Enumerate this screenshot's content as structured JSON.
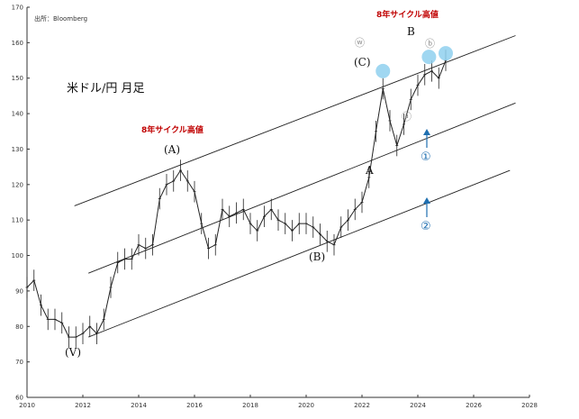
{
  "chart_data": {
    "type": "line",
    "title": "米ドル/円 月足",
    "source": "出所：Bloomberg",
    "ylim": [
      60,
      170
    ],
    "yticks": [
      60,
      70,
      80,
      90,
      100,
      110,
      120,
      130,
      140,
      150,
      160,
      170
    ],
    "xlim": [
      2010,
      2028
    ],
    "xticks": [
      "2010",
      "2012",
      "2014",
      "2016",
      "2018",
      "2020",
      "2022",
      "2024",
      "2026",
      "2028"
    ],
    "grid": false,
    "series": [
      {
        "x": [
          2010.0,
          2010.25,
          2010.5,
          2010.75,
          2011.0,
          2011.25,
          2011.5,
          2011.75,
          2012.0,
          2012.25,
          2012.5,
          2012.75,
          2013.0,
          2013.25,
          2013.5,
          2013.75,
          2014.0,
          2014.25,
          2014.5,
          2014.75,
          2015.0,
          2015.25,
          2015.5,
          2015.75,
          2016.0,
          2016.25,
          2016.5,
          2016.75,
          2017.0,
          2017.25,
          2017.5,
          2017.75,
          2018.0,
          2018.25,
          2018.5,
          2018.75,
          2019.0,
          2019.25,
          2019.5,
          2019.75,
          2020.0,
          2020.25,
          2020.5,
          2020.75,
          2021.0,
          2021.25,
          2021.5,
          2021.75,
          2022.0,
          2022.25,
          2022.5,
          2022.75,
          2023.0,
          2023.25,
          2023.5,
          2023.75,
          2024.0,
          2024.25,
          2024.5,
          2024.75,
          2025.0
        ],
        "y": [
          91,
          93,
          86,
          82,
          82,
          81,
          77,
          77,
          78,
          80,
          78,
          82,
          91,
          98,
          99,
          99,
          103,
          102,
          103,
          116,
          120,
          121,
          124,
          121,
          118,
          109,
          102,
          103,
          113,
          111,
          112,
          113,
          109,
          107,
          111,
          113,
          110,
          109,
          107,
          109,
          109,
          108,
          106,
          104,
          103,
          108,
          110,
          113,
          115,
          122,
          135,
          147,
          138,
          131,
          137,
          144,
          148,
          151,
          152,
          150,
          155
        ]
      }
    ],
    "channel_lines": [
      {
        "x": [
          2011.7,
          2027.5
        ],
        "y": [
          114,
          162
        ]
      },
      {
        "x": [
          2012.2,
          2027.5
        ],
        "y": [
          95,
          143
        ]
      },
      {
        "x": [
          2012.2,
          2027.3
        ],
        "y": [
          77,
          124
        ]
      }
    ],
    "annotations": {
      "cycle_high_left": "8年サイクル高値",
      "cycle_high_right": "8年サイクル高値",
      "wave_A_paren": "(A)",
      "wave_B_paren": "(B)",
      "wave_C_paren": "(C)",
      "wave_V": "(V)",
      "wave_A": "A",
      "wave_B": "B",
      "circle_w": "ⓦ",
      "circle_a": "ⓐ",
      "circle_b": "ⓑ",
      "circle_1": "①",
      "circle_2": "②"
    },
    "colors": {
      "line": "#222222",
      "axis": "#333333",
      "highlight": "#8fd0ee",
      "arrow": "#1f6fb0",
      "red_text": "#c00000"
    }
  }
}
